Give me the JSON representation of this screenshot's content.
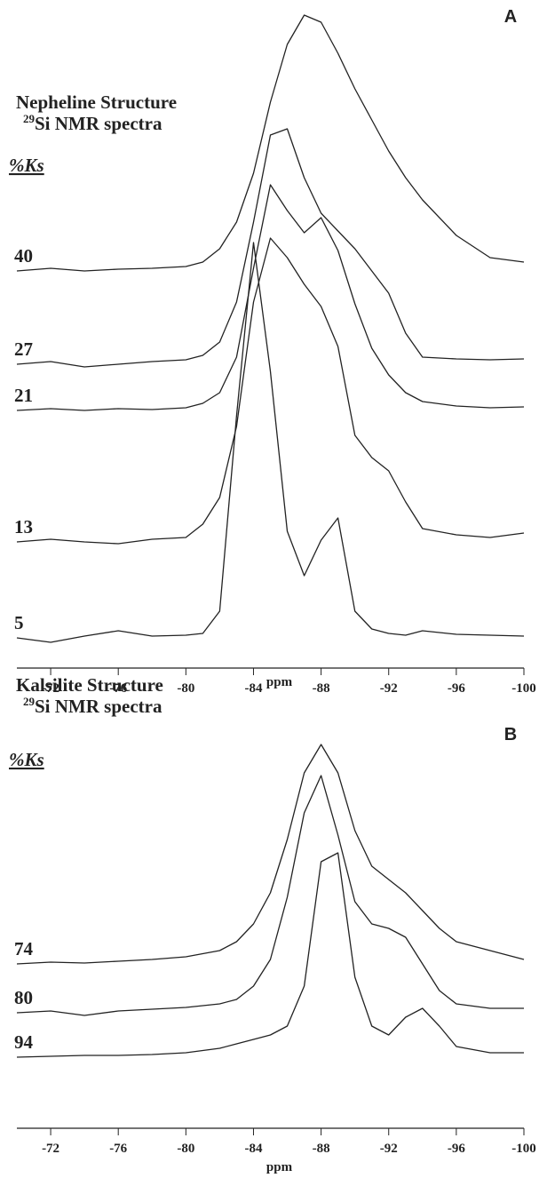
{
  "chart_data": [
    {
      "type": "line",
      "panel_label": "A",
      "title": "Nepheline Structure",
      "isotope": "29",
      "subtitle": "Si NMR spectra",
      "legend_title": "%Ks",
      "xlabel": "ppm",
      "xlim": [
        -70,
        -100
      ],
      "xticks": [
        -72,
        -76,
        -80,
        -84,
        -88,
        -92,
        -96,
        -100
      ],
      "x": [
        -70,
        -72,
        -74,
        -76,
        -78,
        -80,
        -81,
        -82,
        -83,
        -84,
        -85,
        -86,
        -87,
        -88,
        -89,
        -90,
        -91,
        -92,
        -93,
        -94,
        -96,
        -98,
        -100
      ],
      "series": [
        {
          "name": "40",
          "color": "#222222",
          "values": [
            0,
            3,
            0,
            2,
            3,
            5,
            10,
            25,
            55,
            110,
            190,
            255,
            288,
            280,
            245,
            205,
            170,
            135,
            105,
            80,
            40,
            15,
            10
          ]
        },
        {
          "name": "27",
          "color": "#222222",
          "values": [
            0,
            3,
            -3,
            0,
            3,
            5,
            10,
            25,
            70,
            160,
            258,
            265,
            210,
            170,
            150,
            130,
            105,
            80,
            35,
            8,
            6,
            5,
            6
          ]
        },
        {
          "name": "21",
          "color": "#222222",
          "values": [
            0,
            2,
            0,
            2,
            1,
            3,
            8,
            20,
            60,
            160,
            254,
            225,
            200,
            217,
            180,
            120,
            70,
            40,
            20,
            10,
            5,
            3,
            4
          ]
        },
        {
          "name": "13",
          "color": "#222222",
          "values": [
            0,
            3,
            0,
            -2,
            3,
            5,
            20,
            50,
            130,
            270,
            342,
            320,
            290,
            265,
            220,
            120,
            95,
            80,
            45,
            15,
            8,
            5,
            10
          ]
        },
        {
          "name": "5",
          "color": "#222222",
          "values": [
            0,
            -5,
            2,
            8,
            2,
            3,
            5,
            30,
            250,
            445,
            300,
            120,
            70,
            110,
            135,
            30,
            10,
            5,
            3,
            8,
            4,
            3,
            2
          ]
        }
      ]
    },
    {
      "type": "line",
      "panel_label": "B",
      "title": "Kalsilite Structure",
      "isotope": "29",
      "subtitle": "Si NMR spectra",
      "legend_title": "%Ks",
      "xlabel": "ppm",
      "xlim": [
        -70,
        -100
      ],
      "xticks": [
        -72,
        -76,
        -80,
        -84,
        -88,
        -92,
        -96,
        -100
      ],
      "x": [
        -70,
        -72,
        -74,
        -76,
        -78,
        -80,
        -82,
        -83,
        -84,
        -85,
        -86,
        -87,
        -88,
        -89,
        -90,
        -91,
        -92,
        -93,
        -94,
        -95,
        -96,
        -98,
        -100
      ],
      "series": [
        {
          "name": "74",
          "color": "#222222",
          "values": [
            0,
            2,
            1,
            3,
            5,
            8,
            15,
            25,
            45,
            80,
            140,
            215,
            247,
            215,
            150,
            110,
            95,
            80,
            60,
            40,
            25,
            15,
            5
          ]
        },
        {
          "name": "80",
          "color": "#222222",
          "values": [
            0,
            2,
            -3,
            2,
            4,
            6,
            10,
            15,
            30,
            60,
            130,
            225,
            267,
            200,
            125,
            100,
            95,
            85,
            55,
            25,
            10,
            5,
            5
          ]
        },
        {
          "name": "94",
          "color": "#222222",
          "values": [
            0,
            1,
            2,
            2,
            3,
            5,
            10,
            15,
            20,
            25,
            35,
            80,
            220,
            230,
            90,
            35,
            25,
            45,
            55,
            35,
            12,
            5,
            5
          ]
        }
      ]
    }
  ]
}
